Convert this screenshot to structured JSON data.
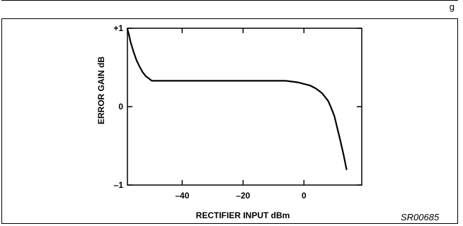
{
  "top_note": "g",
  "figure_id": "SR00685",
  "chart_data": {
    "type": "line",
    "xlabel": "RECTIFIER INPUT dBm",
    "ylabel": "ERROR GAIN dB",
    "xlim": [
      -58,
      19
    ],
    "ylim": [
      -1,
      1
    ],
    "x_ticks": [
      {
        "value": -40,
        "label": "–40"
      },
      {
        "value": -20,
        "label": "–20"
      },
      {
        "value": 0,
        "label": "0"
      }
    ],
    "y_ticks": [
      {
        "value": 1,
        "label": "+1"
      },
      {
        "value": 0,
        "label": "0"
      },
      {
        "value": -1,
        "label": "–1"
      }
    ],
    "grid": false,
    "series": [
      {
        "x": [
          -58,
          -57.5,
          -57,
          -56,
          -55,
          -54,
          -53,
          -52,
          -51,
          -50,
          -45,
          -40,
          -35,
          -30,
          -25,
          -20,
          -15,
          -10,
          -6,
          -4,
          -2,
          0,
          2,
          4,
          6,
          8,
          9,
          10,
          11,
          12,
          13,
          14
        ],
        "y": [
          0.99,
          0.92,
          0.83,
          0.7,
          0.59,
          0.51,
          0.44,
          0.39,
          0.36,
          0.33,
          0.33,
          0.33,
          0.33,
          0.33,
          0.33,
          0.33,
          0.33,
          0.33,
          0.33,
          0.32,
          0.31,
          0.29,
          0.27,
          0.23,
          0.17,
          0.07,
          -0.02,
          -0.12,
          -0.28,
          -0.44,
          -0.61,
          -0.8
        ]
      }
    ]
  }
}
